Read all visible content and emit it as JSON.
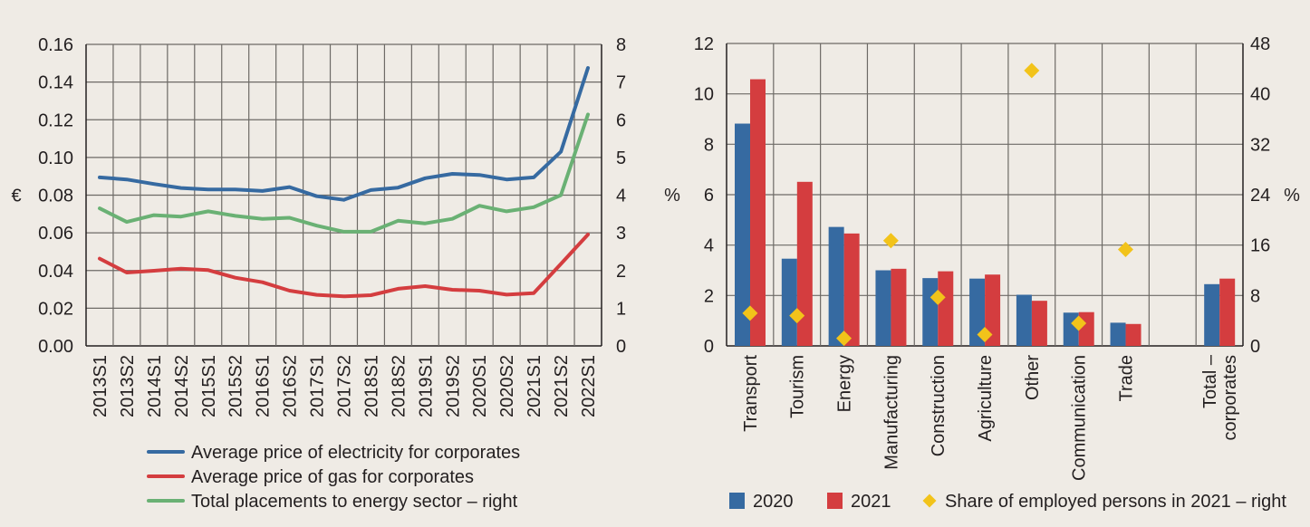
{
  "chart_data": [
    {
      "type": "line",
      "title": "",
      "xlabel": "",
      "ylabel": "€",
      "ylabel_right": "",
      "x": [
        "2013S1",
        "2013S2",
        "2014S1",
        "2014S2",
        "2015S1",
        "2015S2",
        "2016S1",
        "2016S2",
        "2017S1",
        "2017S2",
        "2018S1",
        "2018S2",
        "2019S1",
        "2019S2",
        "2020S1",
        "2020S2",
        "2021S1",
        "2021S2",
        "2022S1"
      ],
      "ylim": [
        0,
        0.16
      ],
      "yticks": [
        "0.00",
        "0.02",
        "0.04",
        "0.06",
        "0.08",
        "0.10",
        "0.12",
        "0.14",
        "0.16"
      ],
      "ylim_right": [
        0,
        8
      ],
      "yticks_right": [
        "0",
        "1",
        "2",
        "3",
        "4",
        "5",
        "6",
        "7",
        "8"
      ],
      "grid": true,
      "legend_position": "bottom",
      "series": [
        {
          "name": "Average price of electricity for corporates",
          "axis": "left",
          "color": "#366aa1",
          "values": [
            0.0894,
            0.0883,
            0.0859,
            0.0838,
            0.083,
            0.083,
            0.0822,
            0.0843,
            0.0794,
            0.0775,
            0.0827,
            0.084,
            0.089,
            0.0913,
            0.0907,
            0.0883,
            0.0894,
            0.103,
            0.1475
          ]
        },
        {
          "name": "Average price of gas for corporates",
          "axis": "left",
          "color": "#d43d3f",
          "values": [
            0.0463,
            0.0389,
            0.0399,
            0.041,
            0.0402,
            0.0362,
            0.0338,
            0.0293,
            0.0271,
            0.0263,
            0.0269,
            0.0303,
            0.0317,
            0.0298,
            0.0293,
            0.0272,
            0.028,
            0.0435,
            0.0591
          ]
        },
        {
          "name": "Total placements to energy sector – right",
          "axis": "right",
          "color": "#6ab174",
          "values": [
            3.65,
            3.29,
            3.47,
            3.43,
            3.57,
            3.45,
            3.37,
            3.4,
            3.19,
            3.03,
            3.03,
            3.32,
            3.25,
            3.37,
            3.72,
            3.57,
            3.68,
            4.0,
            6.14
          ]
        }
      ]
    },
    {
      "type": "bar",
      "title": "",
      "xlabel": "",
      "ylabel": "%",
      "ylabel_right": "%",
      "categories": [
        "Transport",
        "Tourism",
        "Energy",
        "Manufacturing",
        "Construction",
        "Agriculture",
        "Other",
        "Communication",
        "Trade",
        "",
        "Total – corporates"
      ],
      "category_lines": [
        [
          "Transport"
        ],
        [
          "Tourism"
        ],
        [
          "Energy"
        ],
        [
          "Manufacturing"
        ],
        [
          "Construction"
        ],
        [
          "Agriculture"
        ],
        [
          "Other"
        ],
        [
          "Communication"
        ],
        [
          "Trade"
        ],
        [],
        [
          "Total –",
          "corporates"
        ]
      ],
      "ylim": [
        0,
        12
      ],
      "yticks": [
        "0",
        "2",
        "4",
        "6",
        "8",
        "10",
        "12"
      ],
      "ylim_right": [
        0,
        48
      ],
      "yticks_right": [
        "0",
        "8",
        "16",
        "24",
        "32",
        "40",
        "48"
      ],
      "grid": true,
      "legend_position": "bottom",
      "series": [
        {
          "name": "2020",
          "kind": "bar",
          "axis": "left",
          "color": "#366aa1",
          "values": [
            8.82,
            3.46,
            4.72,
            3.0,
            2.69,
            2.67,
            2.03,
            1.32,
            0.92,
            null,
            2.45
          ]
        },
        {
          "name": "2021",
          "kind": "bar",
          "axis": "left",
          "color": "#d43d3f",
          "values": [
            10.58,
            6.51,
            4.46,
            3.06,
            2.96,
            2.83,
            1.79,
            1.34,
            0.87,
            null,
            2.67
          ]
        },
        {
          "name": "Share of employed persons in 2021 – right",
          "kind": "marker",
          "marker": "diamond",
          "axis": "right",
          "color": "#f2c31a",
          "values": [
            5.2,
            4.8,
            1.2,
            16.7,
            7.7,
            1.8,
            43.7,
            3.6,
            15.3,
            null,
            null
          ]
        }
      ]
    }
  ]
}
